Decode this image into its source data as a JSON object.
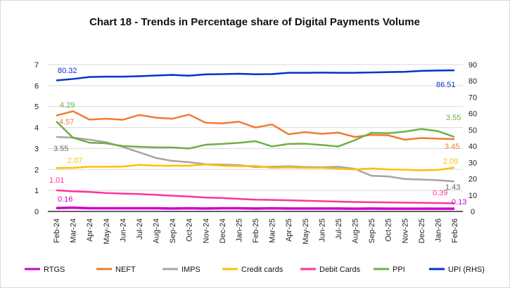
{
  "chart_data": {
    "type": "line",
    "title": "Chart 18 - Trends in Percentage share of Digital Payments Volume",
    "categories": [
      "Feb-24",
      "Mar-24",
      "Apr-24",
      "May-24",
      "Jun-24",
      "Jul-24",
      "Aug-24",
      "Sep-24",
      "Oct-24",
      "Nov-24",
      "Dec-24",
      "Jan-25",
      "Feb-25",
      "Mar-25",
      "Apr-25",
      "May-25",
      "Jun-25",
      "Jul-25",
      "Aug-25",
      "Sep-25",
      "Oct-25",
      "Nov-25",
      "Dec-25",
      "Jan-26",
      "Feb-26"
    ],
    "ylim_left": [
      0,
      7
    ],
    "yticks_left": [
      "0",
      "1",
      "2",
      "3",
      "4",
      "5",
      "6",
      "7"
    ],
    "ylim_right": [
      0,
      90
    ],
    "yticks_right": [
      "0",
      "10",
      "20",
      "30",
      "40",
      "50",
      "60",
      "70",
      "80",
      "90"
    ],
    "grid": true,
    "legend_placement": "bottom",
    "series": [
      {
        "name": "RTGS",
        "axis": "left",
        "color": "#cc00cc",
        "values": [
          0.16,
          0.18,
          0.15,
          0.15,
          0.15,
          0.15,
          0.15,
          0.14,
          0.15,
          0.14,
          0.15,
          0.15,
          0.14,
          0.15,
          0.14,
          0.14,
          0.14,
          0.14,
          0.13,
          0.14,
          0.13,
          0.13,
          0.13,
          0.13,
          0.13
        ],
        "labels": {
          "first": "0.16",
          "last": "0.13"
        }
      },
      {
        "name": "NEFT",
        "axis": "left",
        "color": "#ed7d31",
        "values": [
          4.57,
          4.78,
          4.38,
          4.42,
          4.37,
          4.6,
          4.47,
          4.42,
          4.62,
          4.23,
          4.2,
          4.28,
          4.0,
          4.15,
          3.68,
          3.78,
          3.7,
          3.76,
          3.55,
          3.65,
          3.63,
          3.42,
          3.5,
          3.47,
          3.45
        ],
        "labels": {
          "first": "4.57",
          "last": "3.45"
        }
      },
      {
        "name": "IMPS",
        "axis": "left",
        "color": "#a5a5a5",
        "values": [
          3.55,
          3.52,
          3.42,
          3.3,
          3.08,
          2.82,
          2.55,
          2.41,
          2.35,
          2.25,
          2.23,
          2.21,
          2.12,
          2.13,
          2.15,
          2.12,
          2.1,
          2.13,
          2.03,
          1.7,
          1.67,
          1.55,
          1.52,
          1.49,
          1.43
        ],
        "labels": {
          "first": "3.55",
          "last": "1.43"
        }
      },
      {
        "name": "Credit cards",
        "axis": "left",
        "color": "#ffc000",
        "values": [
          2.07,
          2.08,
          2.13,
          2.13,
          2.14,
          2.22,
          2.18,
          2.18,
          2.18,
          2.24,
          2.18,
          2.16,
          2.17,
          2.08,
          2.1,
          2.08,
          2.08,
          2.04,
          2.0,
          2.05,
          2.0,
          1.99,
          1.96,
          1.98,
          2.09
        ],
        "labels": {
          "first": "2.07",
          "last": "2.09"
        }
      },
      {
        "name": "Debit Cards",
        "axis": "left",
        "color": "#ff3399",
        "values": [
          1.01,
          0.96,
          0.93,
          0.88,
          0.85,
          0.83,
          0.79,
          0.75,
          0.71,
          0.66,
          0.64,
          0.6,
          0.56,
          0.55,
          0.53,
          0.51,
          0.49,
          0.47,
          0.45,
          0.44,
          0.43,
          0.42,
          0.41,
          0.4,
          0.39
        ],
        "labels": {
          "first": "1.01",
          "last": "0.39"
        }
      },
      {
        "name": "PPI",
        "axis": "left",
        "color": "#70ad47",
        "values": [
          4.29,
          3.52,
          3.28,
          3.25,
          3.12,
          3.08,
          3.05,
          3.05,
          3.0,
          3.18,
          3.22,
          3.27,
          3.35,
          3.1,
          3.22,
          3.23,
          3.17,
          3.1,
          3.4,
          3.75,
          3.73,
          3.8,
          3.93,
          3.83,
          3.55
        ],
        "labels": {
          "first": "4.29",
          "last": "3.55"
        }
      },
      {
        "name": "UPI (RHS)",
        "axis": "right",
        "color": "#0033cc",
        "values": [
          80.32,
          81.2,
          82.4,
          82.6,
          82.6,
          82.9,
          83.3,
          83.7,
          83.2,
          84.0,
          84.2,
          84.4,
          84.1,
          84.2,
          85.0,
          85.0,
          85.1,
          85.0,
          85.0,
          85.2,
          85.4,
          85.6,
          86.2,
          86.4,
          86.51
        ],
        "labels": {
          "first": "80.32",
          "last": "86.51"
        }
      }
    ]
  }
}
